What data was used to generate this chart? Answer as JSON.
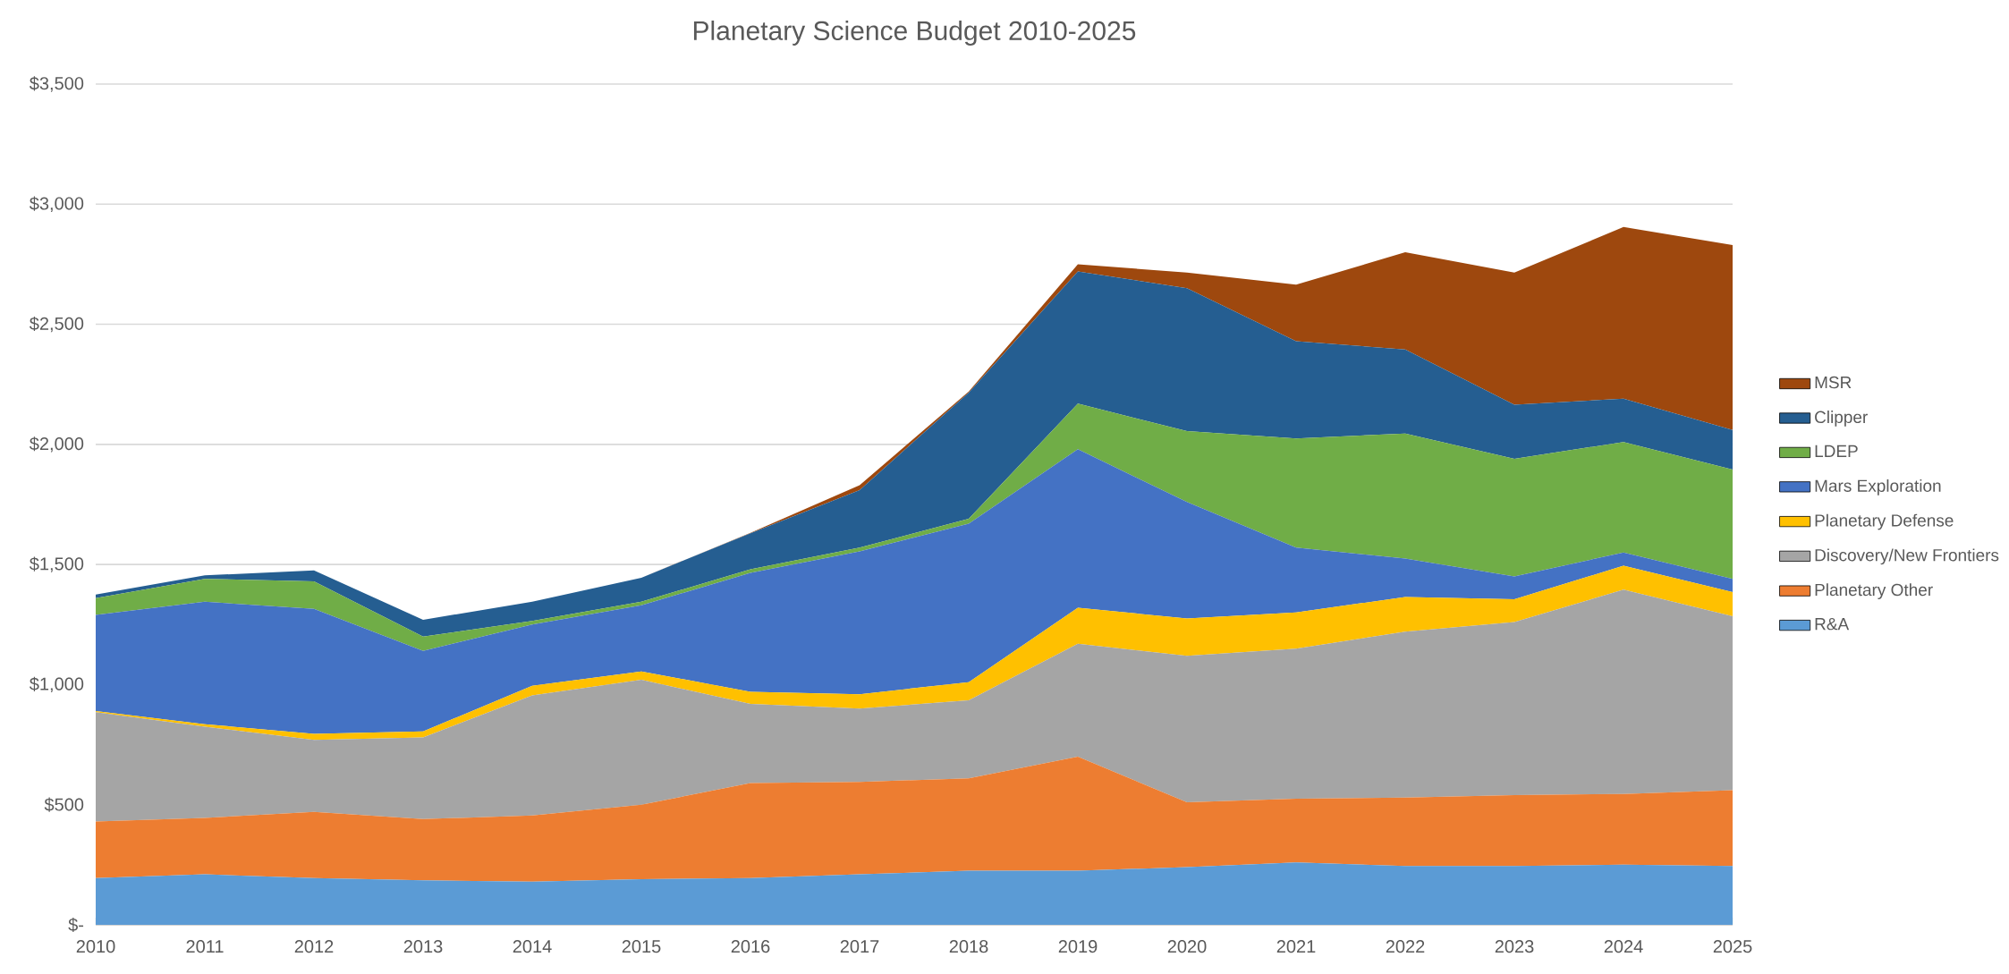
{
  "chart_data": {
    "type": "area",
    "title": "Planetary Science Budget 2010-2025",
    "stacked": true,
    "grid": "y",
    "legend": "right",
    "x": [
      2010,
      2011,
      2012,
      2013,
      2014,
      2015,
      2016,
      2017,
      2018,
      2019,
      2020,
      2021,
      2022,
      2023,
      2024,
      2025
    ],
    "xlim": [
      2010,
      2025
    ],
    "xticks": [
      2010,
      2011,
      2012,
      2013,
      2014,
      2015,
      2016,
      2017,
      2018,
      2019,
      2020,
      2021,
      2022,
      2023,
      2024,
      2025
    ],
    "ylim": [
      0,
      3500
    ],
    "yticks": [
      {
        "value": 0,
        "label": "$-"
      },
      {
        "value": 500,
        "label": "$500"
      },
      {
        "value": 1000,
        "label": "$1,000"
      },
      {
        "value": 1500,
        "label": "$1,500"
      },
      {
        "value": 2000,
        "label": "$2,000"
      },
      {
        "value": 2500,
        "label": "$2,500"
      },
      {
        "value": 3000,
        "label": "$3,000"
      },
      {
        "value": 3500,
        "label": "$3,500"
      }
    ],
    "series": [
      {
        "name": "R&A",
        "color": "#5b9bd5",
        "values": [
          195,
          210,
          195,
          185,
          180,
          190,
          195,
          210,
          225,
          225,
          240,
          260,
          245,
          245,
          250,
          245
        ]
      },
      {
        "name": "Planetary Other",
        "color": "#ed7d31",
        "values": [
          235,
          235,
          275,
          255,
          275,
          310,
          395,
          385,
          385,
          475,
          270,
          265,
          285,
          295,
          295,
          315
        ]
      },
      {
        "name": "Discovery/New Frontiers",
        "color": "#a5a5a5",
        "values": [
          455,
          380,
          300,
          340,
          500,
          520,
          330,
          305,
          325,
          470,
          610,
          625,
          690,
          720,
          850,
          725
        ]
      },
      {
        "name": "Planetary Defense",
        "color": "#ffc000",
        "values": [
          5,
          10,
          25,
          25,
          40,
          35,
          50,
          60,
          75,
          150,
          155,
          150,
          145,
          95,
          100,
          100
        ]
      },
      {
        "name": "Mars Exploration",
        "color": "#4472c4",
        "values": [
          400,
          510,
          520,
          335,
          255,
          275,
          495,
          595,
          660,
          660,
          485,
          270,
          160,
          95,
          55,
          55
        ]
      },
      {
        "name": "LDEP",
        "color": "#70ad47",
        "values": [
          70,
          95,
          115,
          60,
          15,
          15,
          15,
          15,
          20,
          190,
          295,
          455,
          520,
          490,
          460,
          455
        ]
      },
      {
        "name": "Clipper",
        "color": "#255e91",
        "values": [
          15,
          15,
          45,
          70,
          80,
          100,
          150,
          240,
          525,
          550,
          595,
          405,
          350,
          225,
          180,
          165
        ]
      },
      {
        "name": "MSR",
        "color": "#9e480e",
        "values": [
          0,
          0,
          0,
          0,
          0,
          0,
          2,
          20,
          5,
          30,
          65,
          235,
          405,
          550,
          715,
          770
        ]
      }
    ]
  }
}
